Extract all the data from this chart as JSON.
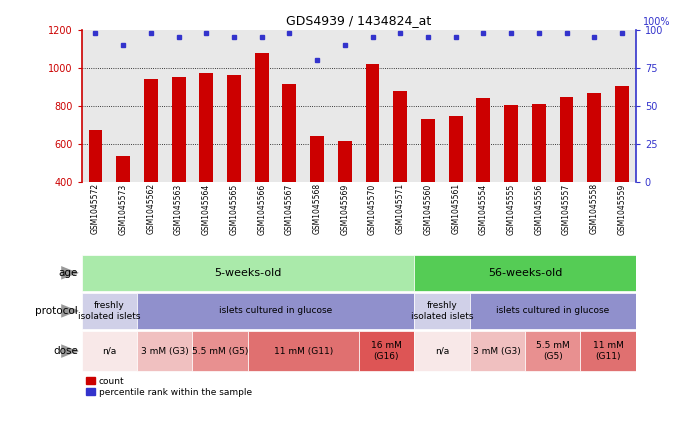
{
  "title": "GDS4939 / 1434824_at",
  "samples": [
    "GSM1045572",
    "GSM1045573",
    "GSM1045562",
    "GSM1045563",
    "GSM1045564",
    "GSM1045565",
    "GSM1045566",
    "GSM1045567",
    "GSM1045568",
    "GSM1045569",
    "GSM1045570",
    "GSM1045571",
    "GSM1045560",
    "GSM1045561",
    "GSM1045554",
    "GSM1045555",
    "GSM1045556",
    "GSM1045557",
    "GSM1045558",
    "GSM1045559"
  ],
  "counts": [
    670,
    535,
    940,
    950,
    970,
    960,
    1075,
    915,
    640,
    615,
    1020,
    875,
    730,
    745,
    840,
    805,
    810,
    845,
    865,
    905
  ],
  "percentiles": [
    98,
    90,
    98,
    95,
    98,
    95,
    95,
    98,
    80,
    90,
    95,
    98,
    95,
    95,
    98,
    98,
    98,
    98,
    95,
    98
  ],
  "ylim_left": [
    400,
    1200
  ],
  "ylim_right": [
    0,
    100
  ],
  "bar_color": "#cc0000",
  "dot_color": "#3333cc",
  "background_color": "#e8e8e8",
  "age_row": {
    "label": "age",
    "groups": [
      {
        "text": "5-weeks-old",
        "start": 0,
        "end": 12,
        "color": "#aaeaaa"
      },
      {
        "text": "56-weeks-old",
        "start": 12,
        "end": 20,
        "color": "#55cc55"
      }
    ]
  },
  "protocol_row": {
    "label": "protocol",
    "groups": [
      {
        "text": "freshly\nisolated islets",
        "start": 0,
        "end": 2,
        "color": "#d0d0e8"
      },
      {
        "text": "islets cultured in glucose",
        "start": 2,
        "end": 12,
        "color": "#9090cc"
      },
      {
        "text": "freshly\nisolated islets",
        "start": 12,
        "end": 14,
        "color": "#d0d0e8"
      },
      {
        "text": "islets cultured in glucose",
        "start": 14,
        "end": 20,
        "color": "#9090cc"
      }
    ]
  },
  "dose_row": {
    "label": "dose",
    "groups": [
      {
        "text": "n/a",
        "start": 0,
        "end": 2,
        "color": "#f8e8e8"
      },
      {
        "text": "3 mM (G3)",
        "start": 2,
        "end": 4,
        "color": "#f0c0c0"
      },
      {
        "text": "5.5 mM (G5)",
        "start": 4,
        "end": 6,
        "color": "#e89090"
      },
      {
        "text": "11 mM (G11)",
        "start": 6,
        "end": 10,
        "color": "#e07070"
      },
      {
        "text": "16 mM\n(G16)",
        "start": 10,
        "end": 12,
        "color": "#dd5555"
      },
      {
        "text": "n/a",
        "start": 12,
        "end": 14,
        "color": "#f8e8e8"
      },
      {
        "text": "3 mM (G3)",
        "start": 14,
        "end": 16,
        "color": "#f0c0c0"
      },
      {
        "text": "5.5 mM\n(G5)",
        "start": 16,
        "end": 18,
        "color": "#e89090"
      },
      {
        "text": "11 mM\n(G11)",
        "start": 18,
        "end": 20,
        "color": "#e07070"
      }
    ]
  },
  "legend": [
    {
      "label": "count",
      "color": "#cc0000"
    },
    {
      "label": "percentile rank within the sample",
      "color": "#3333cc"
    }
  ],
  "row_labels": [
    "age",
    "protocol",
    "dose"
  ],
  "arrow_color": "#999999"
}
